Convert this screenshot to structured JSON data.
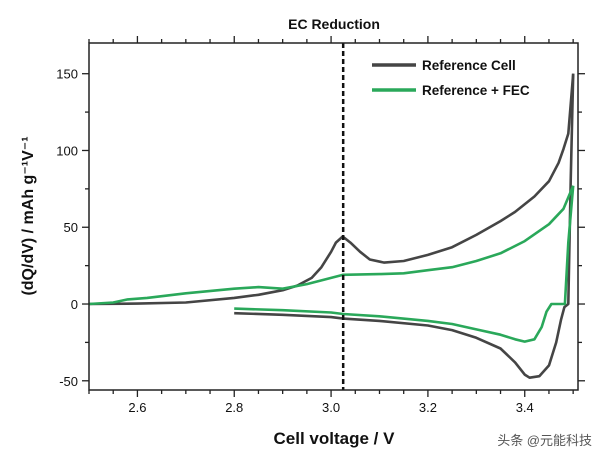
{
  "chart_data": {
    "type": "line",
    "title": "EC Reduction",
    "xlabel": "Cell voltage / V",
    "ylabel": "(dQ/dV) / mAh g⁻¹V⁻¹",
    "xlim": [
      2.5,
      3.51
    ],
    "ylim": [
      -56,
      170
    ],
    "xticks": [
      2.6,
      2.8,
      3.0,
      3.2,
      3.4
    ],
    "xtick_labels": [
      "2.6",
      "2.8",
      "3.0",
      "3.2",
      "3.4"
    ],
    "yticks": [
      -50,
      0,
      50,
      100,
      150
    ],
    "ytick_labels": [
      "-50",
      "0",
      "50",
      "100",
      "150"
    ],
    "legend_position": "top-right",
    "annotation_vline": 3.025,
    "series": [
      {
        "name": "Reference Cell",
        "color": "#454545",
        "segments": [
          [
            [
              2.5,
              0
            ],
            [
              2.6,
              0.3
            ],
            [
              2.7,
              1
            ],
            [
              2.8,
              4
            ],
            [
              2.85,
              6
            ],
            [
              2.9,
              9
            ],
            [
              2.93,
              12
            ],
            [
              2.96,
              17
            ],
            [
              2.98,
              24
            ],
            [
              3.0,
              34
            ],
            [
              3.01,
              40
            ],
            [
              3.024,
              44
            ],
            [
              3.04,
              40
            ],
            [
              3.06,
              34
            ],
            [
              3.08,
              29
            ],
            [
              3.11,
              27
            ],
            [
              3.15,
              28
            ],
            [
              3.2,
              32
            ],
            [
              3.25,
              37
            ],
            [
              3.3,
              45
            ],
            [
              3.35,
              54
            ],
            [
              3.38,
              60
            ],
            [
              3.42,
              70
            ],
            [
              3.45,
              80
            ],
            [
              3.47,
              92
            ],
            [
              3.48,
              101
            ],
            [
              3.49,
              111
            ],
            [
              3.495,
              130
            ],
            [
              3.5,
              150
            ]
          ],
          [
            [
              2.8,
              -6
            ],
            [
              2.9,
              -7
            ],
            [
              3.0,
              -8.5
            ],
            [
              3.025,
              -9.5
            ],
            [
              3.1,
              -11
            ],
            [
              3.2,
              -14
            ],
            [
              3.25,
              -17
            ],
            [
              3.3,
              -22
            ],
            [
              3.35,
              -29
            ],
            [
              3.38,
              -38
            ],
            [
              3.4,
              -46
            ],
            [
              3.41,
              -48
            ],
            [
              3.43,
              -47
            ],
            [
              3.45,
              -40
            ],
            [
              3.465,
              -25
            ],
            [
              3.475,
              -10
            ],
            [
              3.482,
              -2
            ],
            [
              3.49,
              0
            ],
            [
              3.495,
              80
            ],
            [
              3.5,
              150
            ]
          ]
        ]
      },
      {
        "name": "Reference + FEC",
        "color": "#2aa85a",
        "segments": [
          [
            [
              2.5,
              0
            ],
            [
              2.55,
              1
            ],
            [
              2.58,
              3
            ],
            [
              2.62,
              4
            ],
            [
              2.7,
              7
            ],
            [
              2.8,
              10
            ],
            [
              2.85,
              11
            ],
            [
              2.9,
              10
            ],
            [
              2.95,
              13
            ],
            [
              3.0,
              17
            ],
            [
              3.025,
              19
            ],
            [
              3.1,
              19.5
            ],
            [
              3.15,
              20
            ],
            [
              3.2,
              22
            ],
            [
              3.25,
              24
            ],
            [
              3.3,
              28
            ],
            [
              3.35,
              33
            ],
            [
              3.4,
              41
            ],
            [
              3.45,
              52
            ],
            [
              3.48,
              62
            ],
            [
              3.5,
              77
            ]
          ],
          [
            [
              2.8,
              -3
            ],
            [
              2.9,
              -4
            ],
            [
              3.0,
              -5.5
            ],
            [
              3.025,
              -6.5
            ],
            [
              3.1,
              -8
            ],
            [
              3.2,
              -11
            ],
            [
              3.25,
              -13
            ],
            [
              3.3,
              -16.5
            ],
            [
              3.35,
              -20
            ],
            [
              3.38,
              -23
            ],
            [
              3.4,
              -24.5
            ],
            [
              3.42,
              -23
            ],
            [
              3.435,
              -15
            ],
            [
              3.445,
              -5
            ],
            [
              3.455,
              0
            ],
            [
              3.483,
              0
            ],
            [
              3.49,
              40
            ],
            [
              3.5,
              77
            ]
          ]
        ]
      }
    ]
  },
  "watermark": "头条 @元能科技"
}
